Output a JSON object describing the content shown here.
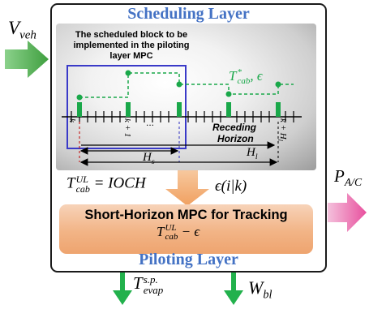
{
  "scheduling_layer": {
    "title": "Scheduling Layer",
    "block_note": "The scheduled block to be implemented in the piloting layer MPC",
    "receding_horizon_line1": "Receding",
    "receding_horizon_line2": "Horizon",
    "ellipsis": "...",
    "tick_k": "k",
    "tick_k1": "k + 1",
    "tick_khl": "k + H",
    "tick_khl_sub": "l",
    "hs_label": "H",
    "hs_sub": "s",
    "hl_label": "H",
    "hl_sub": "l"
  },
  "inputs": {
    "v_veh": "V",
    "v_veh_sub": "veh",
    "t_cab_star": "T",
    "t_cab_star_sup": "*",
    "t_cab_star_sub": "cab",
    "t_cab_star_tail": ", ϵ"
  },
  "between_layers": {
    "t_cab_ul": "T",
    "t_cab_ul_sup": "UL",
    "t_cab_ul_sub": "cab",
    "t_cab_ul_rhs": " = IOCH",
    "epsilon_ik": "ϵ(i|k)"
  },
  "piloting_layer": {
    "title": "Piloting Layer",
    "mpc_title": "Short-Horizon MPC for Tracking",
    "mpc_expr": "T",
    "mpc_expr_sup": "UL",
    "mpc_expr_sub": "cab",
    "mpc_expr_rhs": " − ϵ"
  },
  "outputs": {
    "p_ac": "P",
    "p_ac_sub": "A/C",
    "t_evap": "T",
    "t_evap_sup": "s.p.",
    "t_evap_sub": "evap",
    "w_bl": "W",
    "w_bl_sub": "bl"
  },
  "colors": {
    "layer_title": "#4472c4",
    "schedule_green": "#1aa84a",
    "block_box": "#3a3ac8",
    "arrow_in": "#4cae4c",
    "arrow_out": "#ea6fb0",
    "mpc_box": "#f2b486"
  }
}
